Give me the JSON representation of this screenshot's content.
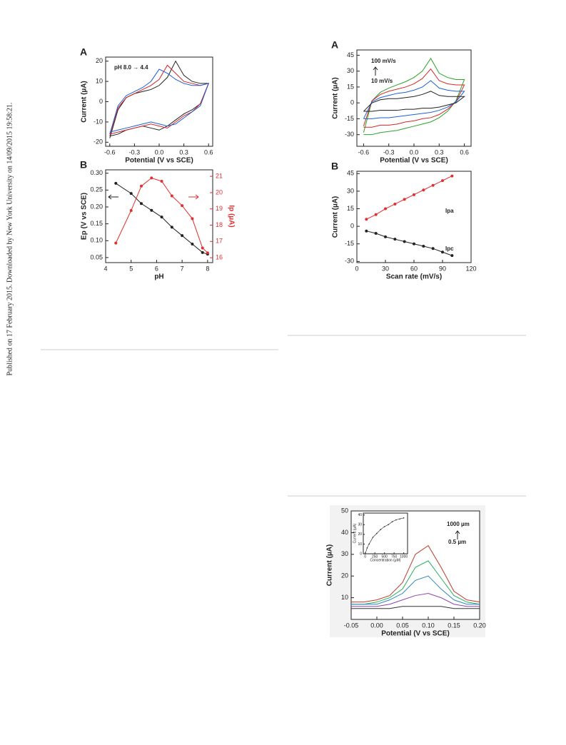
{
  "sidebar": "Published on 17 February 2015. Downloaded by New York University on 14/09/2015 19:58:21.",
  "chart_data": [
    {
      "type": "line",
      "panel": "A",
      "xlabel": "Potential (V vs SCE)",
      "ylabel": "Current (µA)",
      "annotations": [
        "pH 8.0 → 4.4"
      ],
      "xlim": [
        -0.65,
        0.65
      ],
      "ylim": [
        -22,
        22
      ],
      "xticks": [
        -0.6,
        -0.3,
        {
          "value": 0,
          "label": "0.0"
        },
        0.3,
        0.6
      ],
      "yticks": [
        -20,
        -10,
        0,
        10,
        20
      ],
      "x": [
        -0.6,
        -0.5,
        -0.4,
        -0.3,
        -0.2,
        -0.1,
        0,
        0.1,
        0.2,
        0.3,
        0.4,
        0.5,
        0.6,
        0.5,
        0.4,
        0.3,
        0.2,
        0.1,
        0,
        -0.1,
        -0.2,
        -0.3,
        -0.4,
        -0.5,
        -0.6
      ],
      "series": [
        {
          "color": "#222222",
          "values": [
            -18,
            -4,
            2,
            4,
            5,
            6,
            8,
            12,
            20,
            13,
            10,
            9,
            9,
            -1,
            -4,
            -6,
            -9,
            -12,
            -14,
            -13,
            -12,
            -13,
            -14,
            -16,
            -17
          ]
        },
        {
          "color": "#d62728",
          "values": [
            -17,
            -3,
            2,
            4,
            6,
            8,
            11,
            18,
            14,
            10,
            9,
            8,
            9,
            -1,
            -5,
            -7,
            -10,
            -13,
            -12,
            -11,
            -12,
            -13,
            -14,
            -15,
            -16
          ]
        },
        {
          "color": "#1f5fd6",
          "values": [
            -16,
            -2,
            3,
            5,
            7,
            10,
            16,
            14,
            11,
            9,
            8,
            8,
            9,
            -2,
            -5,
            -8,
            -11,
            -12,
            -11,
            -10,
            -11,
            -12,
            -13,
            -14,
            -15
          ]
        }
      ]
    },
    {
      "type": "line",
      "markers": true,
      "panel": "B",
      "xlabel": "pH",
      "ylabel": "Ep (V vs SCE)",
      "y2label": "Ip (µA)",
      "y2color": "#e03030",
      "xlim": [
        4,
        8.2
      ],
      "ylim": [
        0.035,
        0.31
      ],
      "y2lim": [
        15.7,
        21.4
      ],
      "xticks": [
        4,
        5,
        6,
        7,
        8
      ],
      "yticks": [
        0.05,
        {
          "value": 0.1,
          "label": "0.10"
        },
        0.15,
        {
          "value": 0.2,
          "label": "0.20"
        },
        0.25,
        {
          "value": 0.3,
          "label": "0.30"
        }
      ],
      "y2ticks": [
        16,
        17,
        18,
        19,
        20,
        21
      ],
      "x": [
        4.4,
        5.0,
        5.4,
        5.8,
        6.2,
        6.6,
        7.0,
        7.4,
        7.8,
        8.0
      ],
      "series": [
        {
          "color": "#222222",
          "values": [
            0.27,
            0.24,
            0.21,
            0.19,
            0.17,
            0.14,
            0.115,
            0.09,
            0.065,
            0.06
          ]
        },
        {
          "color": "#e03030",
          "axis": "y2",
          "values": [
            16.9,
            18.9,
            20.4,
            20.9,
            20.7,
            19.8,
            19.2,
            18.4,
            16.6,
            16.3
          ]
        }
      ]
    },
    {
      "type": "line",
      "panel": "A",
      "xlabel": "Potential (V vs SCE)",
      "ylabel": "Current (µA)",
      "annotations": [
        "100 mV/s",
        "10 mV/s"
      ],
      "xlim": [
        -0.68,
        0.68
      ],
      "ylim": [
        -41,
        50
      ],
      "xticks": [
        -0.6,
        -0.3,
        {
          "value": 0,
          "label": "0.0"
        },
        0.3,
        0.6
      ],
      "yticks": [
        -30,
        -15,
        0,
        15,
        30,
        45
      ],
      "x": [
        -0.6,
        -0.5,
        -0.4,
        -0.3,
        -0.2,
        -0.1,
        0,
        0.1,
        0.2,
        0.3,
        0.4,
        0.5,
        0.6,
        0.5,
        0.4,
        0.3,
        0.2,
        0.1,
        0,
        -0.1,
        -0.2,
        -0.3,
        -0.4,
        -0.5,
        -0.6
      ],
      "series": [
        {
          "color": "#2ca02c",
          "values": [
            -28,
            2,
            10,
            14,
            17,
            20,
            24,
            30,
            42,
            28,
            24,
            22,
            22,
            2,
            -8,
            -14,
            -18,
            -20,
            -22,
            -24,
            -26,
            -27,
            -28,
            -30,
            -30
          ]
        },
        {
          "color": "#d62728",
          "values": [
            -22,
            2,
            8,
            11,
            13,
            15,
            18,
            23,
            32,
            21,
            18,
            17,
            17,
            1,
            -6,
            -11,
            -14,
            -15,
            -17,
            -18,
            -20,
            -21,
            -21,
            -23,
            -23
          ]
        },
        {
          "color": "#1f5fd6",
          "values": [
            -15,
            1,
            5,
            7,
            9,
            10,
            12,
            15,
            21,
            14,
            12,
            11,
            11,
            1,
            -4,
            -7,
            -9,
            -10,
            -11,
            -12,
            -13,
            -14,
            -14,
            -15,
            -15
          ]
        },
        {
          "color": "#222222",
          "values": [
            -8,
            0,
            3,
            4,
            4,
            5,
            6,
            8,
            11,
            7,
            6,
            6,
            6,
            0,
            -2,
            -4,
            -5,
            -5,
            -6,
            -6,
            -7,
            -7,
            -7,
            -8,
            -8
          ]
        }
      ]
    },
    {
      "type": "line",
      "markers": true,
      "panel": "B",
      "xlabel": "Scan rate (mV/s)",
      "ylabel": "Current (µA)",
      "annotations": [
        "Ipa",
        "Ipc"
      ],
      "xlim": [
        0,
        120
      ],
      "ylim": [
        -31,
        47
      ],
      "xticks": [
        0,
        30,
        60,
        90,
        120
      ],
      "yticks": [
        -30,
        -15,
        0,
        15,
        30,
        45
      ],
      "x": [
        10,
        20,
        30,
        40,
        50,
        60,
        70,
        80,
        90,
        100
      ],
      "series": [
        {
          "color": "#e03030",
          "values": [
            6,
            10,
            15,
            19,
            23,
            27,
            31,
            35,
            39,
            43
          ]
        },
        {
          "color": "#222222",
          "values": [
            -4,
            -6,
            -9,
            -11,
            -13,
            -15,
            -17,
            -19,
            -22,
            -25
          ]
        }
      ]
    },
    {
      "type": "line",
      "xlabel": "Potential (V vs SCE)",
      "ylabel": "Current (µA)",
      "annotations": [
        "1000 µm",
        "0.5 µm"
      ],
      "xlim": [
        -0.05,
        0.2
      ],
      "ylim": [
        0,
        50
      ],
      "xticks": [
        -0.05,
        {
          "value": 0,
          "label": "0.00"
        },
        0.05,
        {
          "value": 0.1,
          "label": "0.10"
        },
        0.15,
        {
          "value": 0.2,
          "label": "0.20"
        }
      ],
      "yticks": [
        10,
        20,
        30,
        40,
        50
      ],
      "x": [
        -0.05,
        -0.025,
        0,
        0.025,
        0.05,
        0.075,
        0.1,
        0.125,
        0.15,
        0.175,
        0.2
      ],
      "series": [
        {
          "color": "#c0392b",
          "values": [
            8,
            8,
            9,
            11,
            17,
            30,
            34,
            24,
            13,
            9,
            8
          ]
        },
        {
          "color": "#27ae60",
          "values": [
            7,
            7,
            8,
            10,
            14,
            24,
            27,
            19,
            11,
            8,
            7
          ]
        },
        {
          "color": "#2e86c1",
          "values": [
            7,
            7,
            7,
            9,
            12,
            18,
            20,
            14,
            9,
            7,
            7
          ]
        },
        {
          "color": "#8e44ad",
          "values": [
            6,
            6,
            6,
            7,
            9,
            11,
            12,
            10,
            7,
            6,
            6
          ]
        },
        {
          "color": "#333333",
          "values": [
            5,
            5,
            5,
            5,
            6,
            6,
            6,
            6,
            5,
            5,
            5
          ]
        }
      ]
    },
    {
      "type": "line",
      "markers": true,
      "inset": true,
      "xlabel": "Concentration (µM)",
      "ylabel": "Current (µA)",
      "xlim": [
        -50,
        1100
      ],
      "ylim": [
        0,
        42
      ],
      "xticks": [
        0,
        250,
        500,
        750,
        1000
      ],
      "yticks": [
        0,
        10,
        20,
        30,
        40
      ],
      "x": [
        0,
        50,
        100,
        200,
        300,
        400,
        500,
        600,
        700,
        800,
        900,
        1000
      ],
      "series": [
        {
          "color": "#222222",
          "values": [
            0,
            6,
            10,
            17,
            21,
            25,
            28,
            30,
            33,
            35,
            36,
            37
          ]
        }
      ]
    }
  ]
}
